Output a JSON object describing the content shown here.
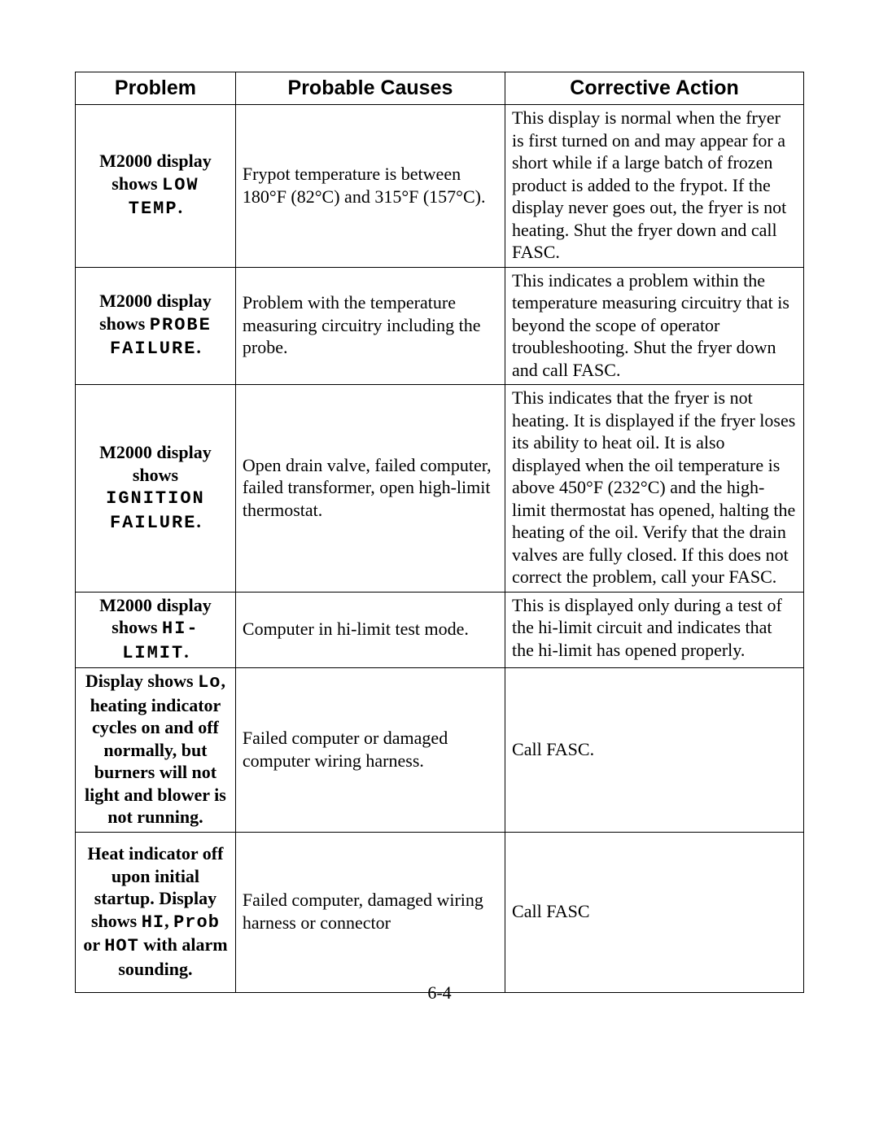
{
  "page_number": "6-4",
  "table": {
    "headers": {
      "problem": "Problem",
      "causes": "Probable Causes",
      "action": "Corrective Action"
    },
    "rows": [
      {
        "problem_prefix": "M2000 display shows ",
        "problem_code": "LOW TEMP",
        "problem_suffix": ".",
        "cause": "Frypot temperature is between 180°F (82°C) and 315°F (157°C).",
        "action": "This display is normal when the fryer is first turned on and may appear for a short while if a large batch of frozen product is added to the frypot.  If the display never goes out, the fryer is not heating.  Shut the fryer down and call FASC."
      },
      {
        "problem_prefix": "M2000 display shows ",
        "problem_code": "PROBE FAILURE",
        "problem_suffix": ".",
        "cause": "Problem with the temperature measuring circuitry including the probe.",
        "action": "This indicates a problem within the temperature measuring circuitry that is beyond the scope of operator troubleshooting.  Shut the fryer down and call FASC."
      },
      {
        "problem_prefix": "M2000 display shows ",
        "problem_code": "IGNITION FAILURE",
        "problem_suffix": ".",
        "cause": "Open drain valve, failed computer, failed transformer, open high-limit thermostat.",
        "action": "This indicates that the fryer is not heating.  It is displayed if the fryer loses its ability to heat oil.  It is also displayed when the oil temperature is above 450°F (232°C) and the high-limit thermostat has opened, halting the heating of the oil.  Verify that the drain valves are fully closed.  If this does not correct the problem, call your FASC."
      },
      {
        "problem_prefix": "M2000 display shows ",
        "problem_code": "HI-LIMIT",
        "problem_suffix": ".",
        "cause": "Computer in hi-limit test mode.",
        "action": "This is displayed only during a test of the hi-limit circuit and indicates that the hi-limit has opened properly."
      },
      {
        "problem_plain_a": "Display shows ",
        "problem_code_a": "Lo",
        "problem_plain_b": ", heating indicator cycles on and off normally, but burners will not light and blower is not running.",
        "cause": "Failed computer or damaged computer wiring harness.",
        "action": "Call FASC."
      },
      {
        "p6_a": "Heat indicator off upon initial startup.  Display shows ",
        "p6_c1": "HI",
        "p6_b": ", ",
        "p6_c2": "Prob",
        "p6_c": " or ",
        "p6_c3": "HOT",
        "p6_d": " with alarm sounding.",
        "cause": "Failed computer, damaged wiring harness or connector",
        "action": "Call FASC"
      }
    ]
  }
}
